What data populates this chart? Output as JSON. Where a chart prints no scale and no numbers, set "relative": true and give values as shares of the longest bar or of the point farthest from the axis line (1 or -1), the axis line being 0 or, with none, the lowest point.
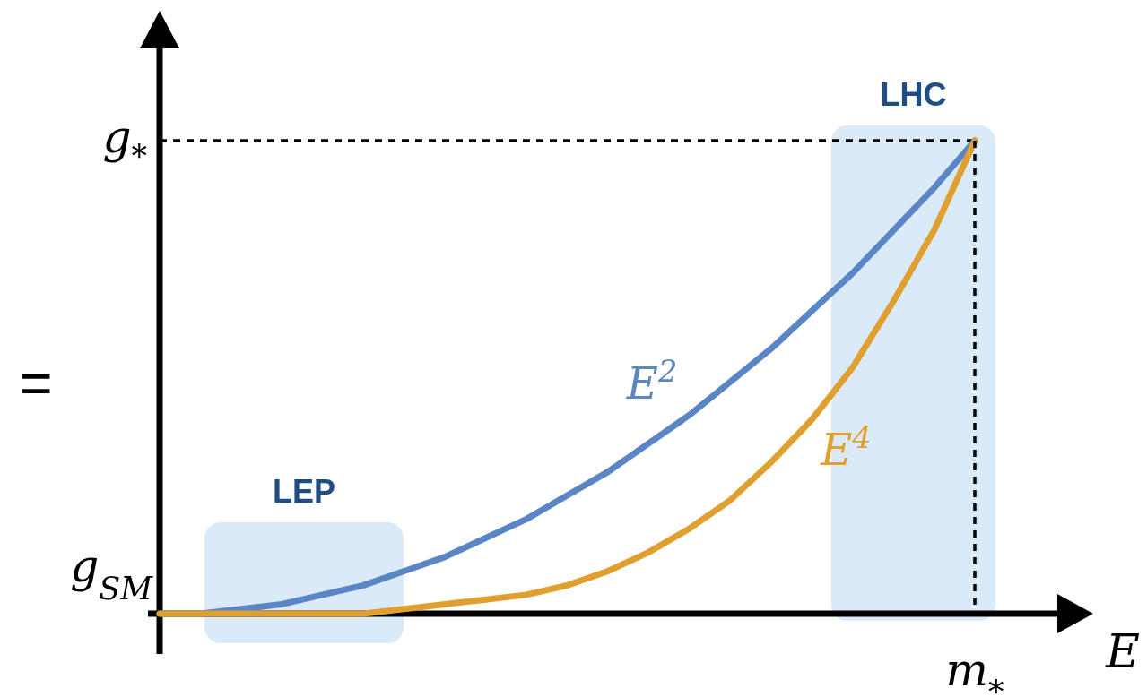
{
  "chart_data": {
    "type": "line",
    "relative": true,
    "xlabel": "E",
    "categories": [
      null,
      null,
      null,
      null,
      null,
      null,
      null,
      null,
      null,
      null,
      null,
      null,
      null,
      null,
      null,
      null,
      null,
      null,
      null,
      null,
      null
    ],
    "line_style": "solid",
    "marker": "none",
    "series": [
      {
        "name": "E$^{2}$",
        "color": "#5b86c5",
        "values": [
          0,
          0,
          0.01,
          0.02,
          0.04,
          0.06,
          0.09,
          0.12,
          0.16,
          0.2,
          0.25,
          0.3,
          0.36,
          0.42,
          0.49,
          0.56,
          0.64,
          0.72,
          0.81,
          0.9,
          1
        ]
      },
      {
        "name": "E$^{4}$",
        "color": "#e0a030",
        "values": [
          0,
          0,
          0,
          0,
          0,
          0,
          0.01,
          0.02,
          0.03,
          0.04,
          0.06,
          0.09,
          0.13,
          0.18,
          0.24,
          0.32,
          0.41,
          0.52,
          0.66,
          0.81,
          1
        ]
      }
    ],
    "ref_lines": [
      {
        "axis": "y",
        "value": 1,
        "label": "g$_{*}$",
        "line_style": "dashed",
        "color": "#000000"
      }
    ],
    "annotations": [
      "=",
      "m$_{*}$",
      "LEP",
      "LHC",
      "g$_{SM}$"
    ]
  }
}
